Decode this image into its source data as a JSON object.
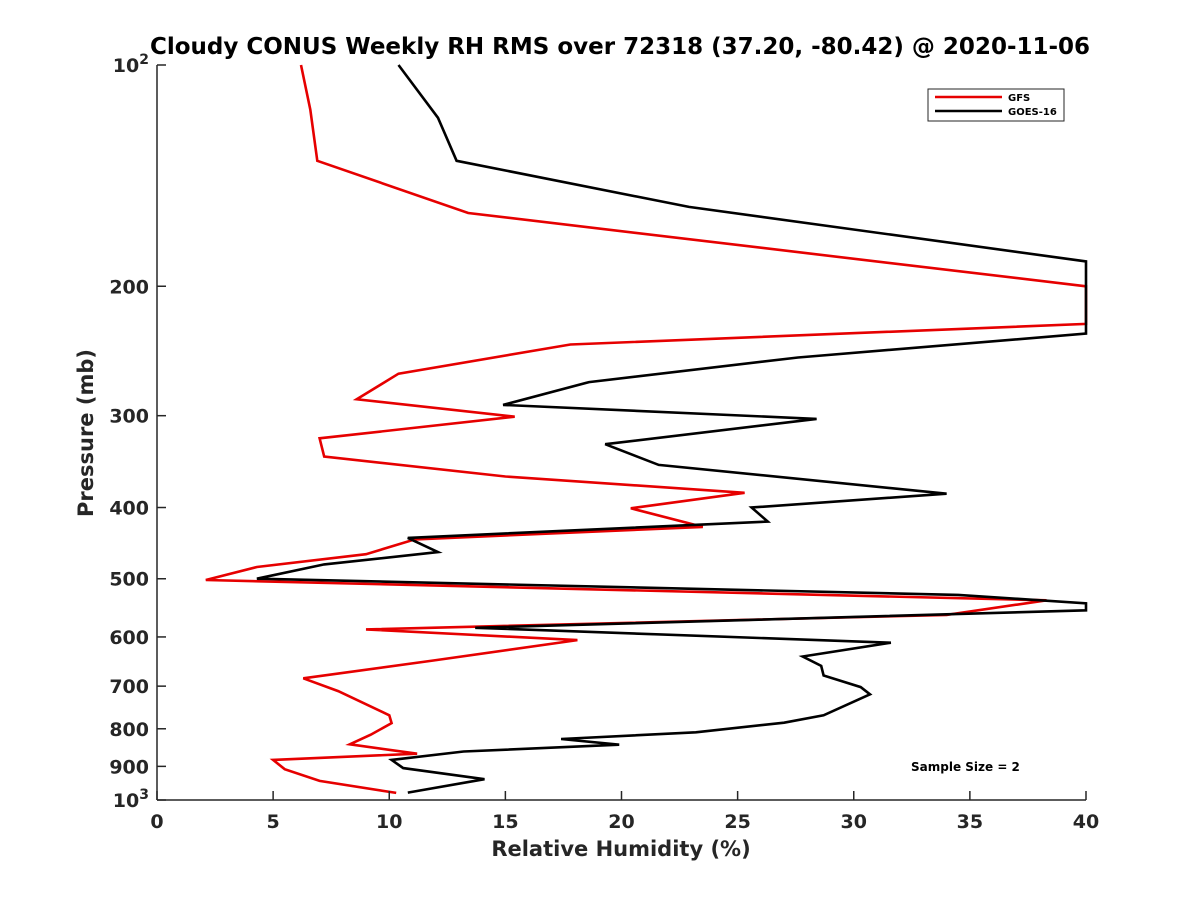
{
  "chart_data": {
    "type": "line",
    "title": "Cloudy CONUS Weekly RH RMS over 72318 (37.20, -80.42) @ 2020-11-06",
    "xlabel": "Relative Humidity (%)",
    "ylabel": "Pressure (mb)",
    "xlim": [
      0,
      40
    ],
    "ylim": [
      100,
      1000
    ],
    "yscale": "log",
    "y_reversed": true,
    "x_ticks": [
      0,
      5,
      10,
      15,
      20,
      25,
      30,
      35,
      40
    ],
    "x_tick_labels": [
      "0",
      "5",
      "10",
      "15",
      "20",
      "25",
      "30",
      "35",
      "40"
    ],
    "y_ticks": [
      {
        "value": 100,
        "base": "10",
        "exp": "2"
      },
      {
        "value": 200,
        "label": "200"
      },
      {
        "value": 300,
        "label": "300"
      },
      {
        "value": 400,
        "label": "400"
      },
      {
        "value": 500,
        "label": "500"
      },
      {
        "value": 600,
        "label": "600"
      },
      {
        "value": 700,
        "label": "700"
      },
      {
        "value": 800,
        "label": "800"
      },
      {
        "value": 900,
        "label": "900"
      },
      {
        "value": 1000,
        "base": "10",
        "exp": "3"
      }
    ],
    "grid": false,
    "legend_position": "top-right",
    "series": [
      {
        "name": "GFS",
        "color": "#e60000",
        "points": [
          [
            6.2,
            100
          ],
          [
            6.6,
            115
          ],
          [
            6.9,
            135
          ],
          [
            13.4,
            159
          ],
          [
            40,
            200
          ],
          [
            40,
            225
          ],
          [
            17.8,
            240
          ],
          [
            10.4,
            263
          ],
          [
            8.6,
            285
          ],
          [
            15.4,
            301
          ],
          [
            7.0,
            322
          ],
          [
            7.2,
            341
          ],
          [
            15.0,
            363
          ],
          [
            25.3,
            382
          ],
          [
            20.4,
            401
          ],
          [
            23.5,
            425
          ],
          [
            11.1,
            442
          ],
          [
            9.0,
            463
          ],
          [
            4.3,
            482
          ],
          [
            2.1,
            502
          ],
          [
            38.3,
            535
          ],
          [
            34.0,
            560
          ],
          [
            9.0,
            586
          ],
          [
            18.1,
            606
          ],
          [
            11.9,
            646
          ],
          [
            6.3,
            683
          ],
          [
            7.8,
            711
          ],
          [
            10.0,
            767
          ],
          [
            10.1,
            786
          ],
          [
            9.2,
            815
          ],
          [
            8.3,
            840
          ],
          [
            11.2,
            865
          ],
          [
            5.0,
            882
          ],
          [
            5.5,
            908
          ],
          [
            7.0,
            942
          ],
          [
            10.3,
            978
          ]
        ]
      },
      {
        "name": "GOES-16",
        "color": "#000000",
        "points": [
          [
            10.4,
            100
          ],
          [
            12.1,
            118
          ],
          [
            12.9,
            135
          ],
          [
            22.9,
            156
          ],
          [
            40,
            185
          ],
          [
            40,
            232
          ],
          [
            27.6,
            250
          ],
          [
            18.6,
            270
          ],
          [
            14.9,
            290
          ],
          [
            28.4,
            303
          ],
          [
            19.3,
            328
          ],
          [
            21.6,
            350
          ],
          [
            34.0,
            383
          ],
          [
            25.6,
            400
          ],
          [
            26.3,
            418
          ],
          [
            10.8,
            440
          ],
          [
            12.1,
            460
          ],
          [
            7.2,
            478
          ],
          [
            4.3,
            500
          ],
          [
            34.5,
            526
          ],
          [
            40,
            540
          ],
          [
            40,
            552
          ],
          [
            13.7,
            583
          ],
          [
            31.6,
            611
          ],
          [
            27.8,
            638
          ],
          [
            28.6,
            657
          ],
          [
            28.7,
            677
          ],
          [
            30.3,
            702
          ],
          [
            30.7,
            718
          ],
          [
            28.7,
            767
          ],
          [
            27.0,
            785
          ],
          [
            23.2,
            809
          ],
          [
            17.4,
            826
          ],
          [
            19.9,
            841
          ],
          [
            13.2,
            859
          ],
          [
            10.1,
            882
          ],
          [
            10.6,
            905
          ],
          [
            14.1,
            937
          ],
          [
            10.8,
            977
          ]
        ]
      }
    ],
    "legend": [
      "GFS",
      "GOES-16"
    ],
    "annotation": "Sample Size = 2"
  }
}
